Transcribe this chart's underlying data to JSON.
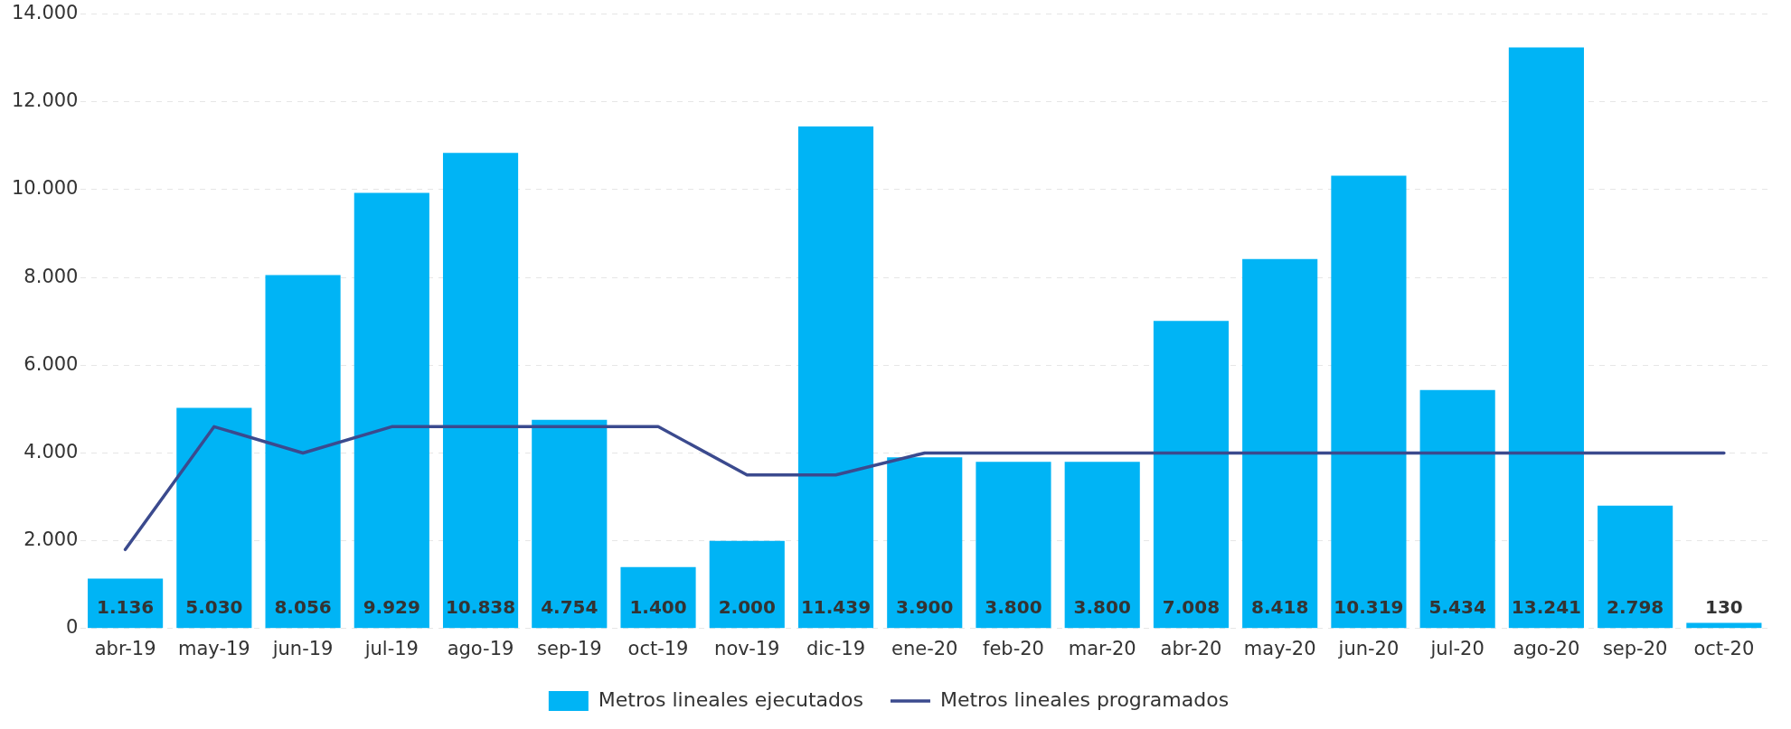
{
  "chart_data": {
    "type": "bar",
    "categories": [
      "abr-19",
      "may-19",
      "jun-19",
      "jul-19",
      "ago-19",
      "sep-19",
      "oct-19",
      "nov-19",
      "dic-19",
      "ene-20",
      "feb-20",
      "mar-20",
      "abr-20",
      "may-20",
      "jun-20",
      "jul-20",
      "ago-20",
      "sep-20",
      "oct-20"
    ],
    "series": [
      {
        "name": "Metros lineales ejecutados",
        "color": "#00b4f5",
        "values": [
          1136,
          5030,
          8056,
          9929,
          10838,
          4754,
          1400,
          2000,
          11439,
          3900,
          3800,
          3800,
          7008,
          8418,
          10319,
          5434,
          13241,
          2798,
          130
        ],
        "value_labels": [
          "1.136",
          "5.030",
          "8.056",
          "9.929",
          "10.838",
          "4.754",
          "1.400",
          "2.000",
          "11.439",
          "3.900",
          "3.800",
          "3.800",
          "7.008",
          "8.418",
          "10.319",
          "5.434",
          "13.241",
          "2.798",
          "130"
        ]
      },
      {
        "name": "Metros lineales programados",
        "type": "line",
        "color": "#3b4a8e",
        "values": [
          1800,
          4600,
          4000,
          4600,
          4600,
          4600,
          4600,
          3500,
          3500,
          4000,
          4000,
          4000,
          4000,
          4000,
          4000,
          4000,
          4000,
          4000,
          4000
        ]
      }
    ],
    "ylim": [
      0,
      14000
    ],
    "yticks": [
      {
        "value": 0,
        "label": "0"
      },
      {
        "value": 2000,
        "label": "2.000"
      },
      {
        "value": 4000,
        "label": "4.000"
      },
      {
        "value": 6000,
        "label": "6.000"
      },
      {
        "value": 8000,
        "label": "8.000"
      },
      {
        "value": 10000,
        "label": "10.000"
      },
      {
        "value": 12000,
        "label": "12.000"
      },
      {
        "value": 14000,
        "label": "14.000"
      }
    ],
    "grid": "y",
    "legend": "bottom",
    "marker": "none",
    "line_style": "solid"
  }
}
